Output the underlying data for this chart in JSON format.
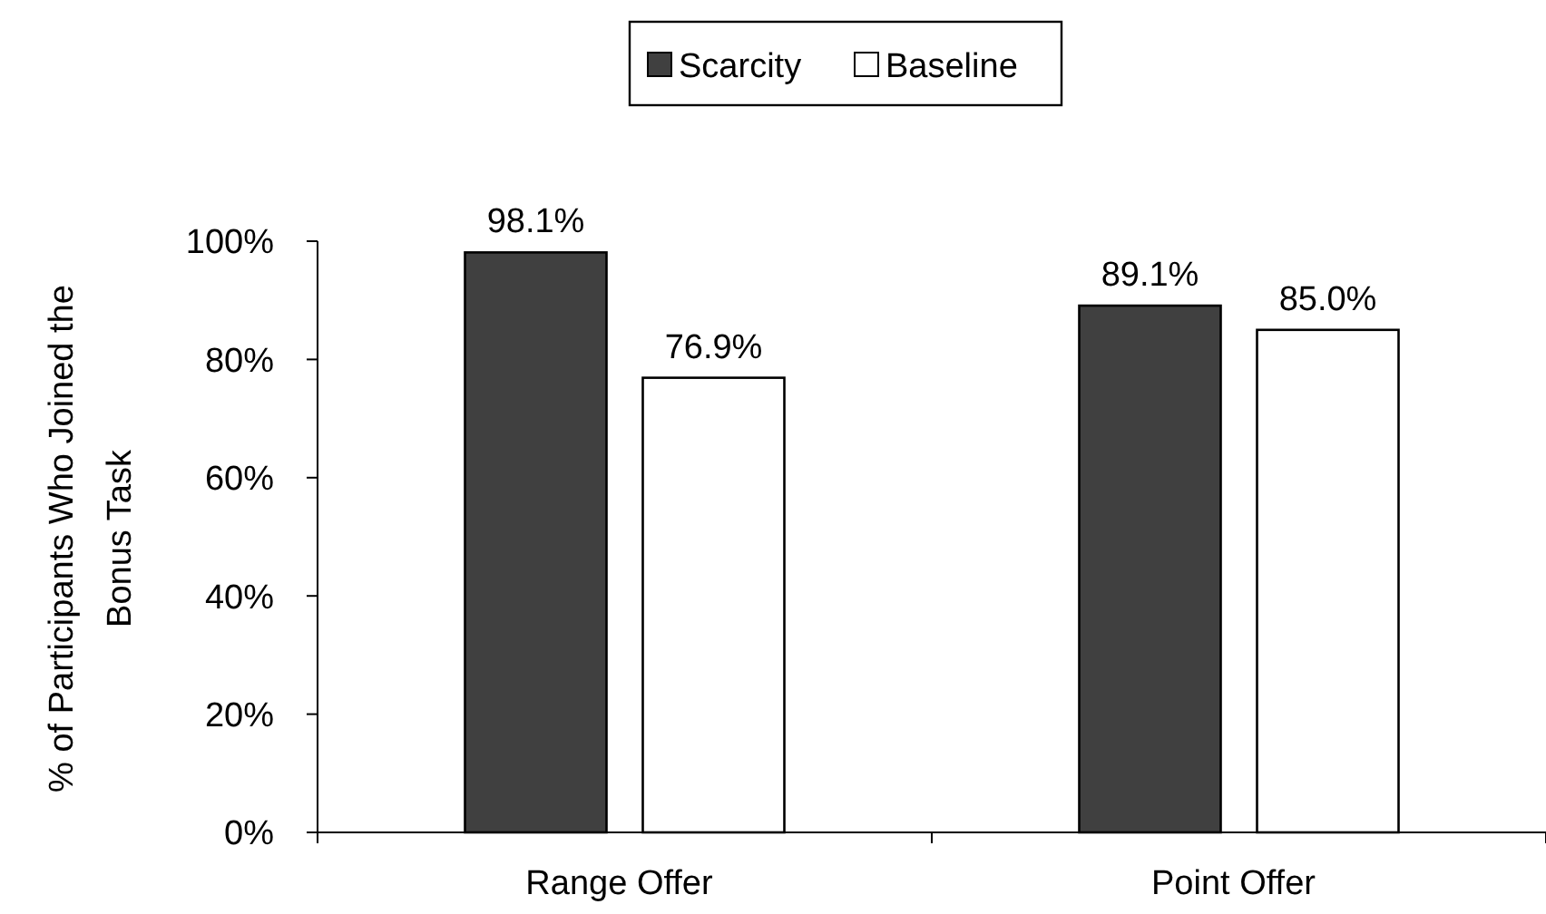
{
  "chart_data": {
    "type": "bar",
    "ylabel": "% of Participants Who Joined the Bonus Task",
    "categories": [
      "Range Offer",
      "Point Offer"
    ],
    "series": [
      {
        "name": "Scarcity",
        "color": "#404040",
        "values": [
          98.1,
          89.1
        ],
        "value_labels": [
          "98.1%",
          "89.1%"
        ]
      },
      {
        "name": "Baseline",
        "color": "#ffffff",
        "values": [
          76.9,
          85.0
        ],
        "value_labels": [
          "76.9%",
          "85.0%"
        ]
      }
    ],
    "ylim": [
      0,
      100
    ],
    "yticks": [
      {
        "value": 0,
        "label": "0%"
      },
      {
        "value": 20,
        "label": "20%"
      },
      {
        "value": 40,
        "label": "40%"
      },
      {
        "value": 60,
        "label": "60%"
      },
      {
        "value": 80,
        "label": "80%"
      },
      {
        "value": 100,
        "label": "100%"
      }
    ],
    "legend": "top",
    "grid": false
  }
}
